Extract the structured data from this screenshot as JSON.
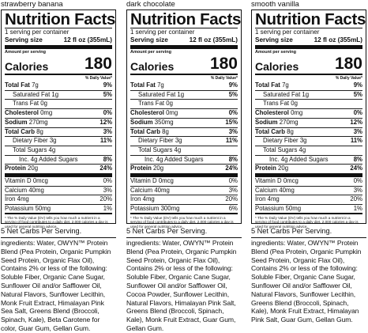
{
  "panels": [
    {
      "flavor": "strawberry banana",
      "title": "Nutrition Facts",
      "servings_per_container": "1 serving per container",
      "serving_size_label": "Serving size",
      "serving_size_value": "12 fl oz (355mL)",
      "amount_per_serving": "Amount per serving",
      "calories_label": "Calories",
      "calories_value": "180",
      "dv_header": "% Daily Value*",
      "rows": [
        {
          "label": "Total Fat",
          "amount": "7g",
          "pct": "9%"
        },
        {
          "label": "Saturated Fat",
          "amount": "1g",
          "pct": "5%"
        },
        {
          "label": "Trans Fat",
          "amount": "0g",
          "pct": ""
        },
        {
          "label": "Cholesterol",
          "amount": "0mg",
          "pct": "0%"
        },
        {
          "label": "Sodium",
          "amount": "270mg",
          "pct": "12%"
        },
        {
          "label": "Total Carb",
          "amount": "8g",
          "pct": "3%"
        },
        {
          "label": "Dietary Fiber",
          "amount": "3g",
          "pct": "11%"
        },
        {
          "label": "Total Sugars",
          "amount": "4g",
          "pct": ""
        },
        {
          "label": "Inc. 4g Added Sugars",
          "amount": "",
          "pct": "8%"
        },
        {
          "label": "Protein",
          "amount": "20g",
          "pct": "24%"
        }
      ],
      "vitamins": [
        {
          "label": "Vitamin D 0mcg",
          "pct": "0%"
        },
        {
          "label": "Calcium 40mg",
          "pct": "3%"
        },
        {
          "label": "Iron 4mg",
          "pct": "20%"
        },
        {
          "label": "Potassium 50mg",
          "pct": "1%"
        }
      ],
      "footnote": "* The % Daily Value (DV) tells you how much a nutrient in a serving of food contributes to a daily diet. 2,000 calories a day is used for general nutrition advice.",
      "net_carbs": "5 Net Carbs Per Serving.",
      "ingredients": "ingredients: Water, OWYN™ Protein Blend (Pea Protein, Organic Pumpkin Seed Protein, Organic Flax Oil), Contains 2% or less of the following: Soluble Fiber, Organic Cane Sugar, Sunflower Oil and/or Safflower Oil, Natural Flavors, Sunflower Lecithin, Monk Fruit Extract, Himalayan Pink Sea Salt, Greens Blend (Broccoli, Spinach, Kale), Beta Carotene for color, Guar Gum, Gellan Gum."
    },
    {
      "flavor": "dark chocolate",
      "title": "Nutrition Facts",
      "servings_per_container": "1 serving per container",
      "serving_size_label": "Serving size",
      "serving_size_value": "12 fl oz (355mL)",
      "amount_per_serving": "Amount per serving",
      "calories_label": "Calories",
      "calories_value": "180",
      "dv_header": "% Daily Value*",
      "rows": [
        {
          "label": "Total Fat",
          "amount": "7g",
          "pct": "9%"
        },
        {
          "label": "Saturated Fat",
          "amount": "1g",
          "pct": "5%"
        },
        {
          "label": "Trans Fat",
          "amount": "0g",
          "pct": ""
        },
        {
          "label": "Cholesterol",
          "amount": "0mg",
          "pct": "0%"
        },
        {
          "label": "Sodium",
          "amount": "350mg",
          "pct": "15%"
        },
        {
          "label": "Total Carb",
          "amount": "8g",
          "pct": "3%"
        },
        {
          "label": "Dietary Fiber",
          "amount": "3g",
          "pct": "11%"
        },
        {
          "label": "Total Sugars",
          "amount": "4g",
          "pct": ""
        },
        {
          "label": "Inc. 4g Added Sugars",
          "amount": "",
          "pct": "8%"
        },
        {
          "label": "Protein",
          "amount": "20g",
          "pct": "24%"
        }
      ],
      "vitamins": [
        {
          "label": "Vitamin D 0mcg",
          "pct": "0%"
        },
        {
          "label": "Calcium 40mg",
          "pct": "3%"
        },
        {
          "label": "Iron 4mg",
          "pct": "20%"
        },
        {
          "label": "Potassium 300mg",
          "pct": "6%"
        }
      ],
      "footnote": "* The % Daily Value (DV) tells you how much a nutrient in a serving of food contributes to a daily diet. 2,000 calories a day is used for general nutrition advice.",
      "net_carbs": "5 Net Carbs Per Serving.",
      "ingredients": "ingredients: Water, OWYN™ Protein Blend (Pea Protein, Organic Pumpkin Seed Protein, Organic Flax Oil), Contains 2% or less of the following: Soluble Fiber, Organic Cane Sugar, Sunflower Oil and/or Safflower Oil, Cocoa Powder, Sunflower Lecithin, Natural Flavors, Himalayan Pink Salt, Greens Blend (Broccoli, Spinach, Kale), Monk Fruit Extract, Guar Gum, Gellan Gum."
    },
    {
      "flavor": "smooth vanilla",
      "title": "Nutrition Facts",
      "servings_per_container": "1 serving per container",
      "serving_size_label": "Serving size",
      "serving_size_value": "12 fl oz (355mL)",
      "amount_per_serving": "Amount per serving",
      "calories_label": "Calories",
      "calories_value": "180",
      "dv_header": "% Daily Value*",
      "rows": [
        {
          "label": "Total Fat",
          "amount": "7g",
          "pct": "9%"
        },
        {
          "label": "Saturated Fat",
          "amount": "1g",
          "pct": "5%"
        },
        {
          "label": "Trans Fat",
          "amount": "0g",
          "pct": ""
        },
        {
          "label": "Cholesterol",
          "amount": "0mg",
          "pct": "0%"
        },
        {
          "label": "Sodium",
          "amount": "270mg",
          "pct": "12%"
        },
        {
          "label": "Total Carb",
          "amount": "8g",
          "pct": "3%"
        },
        {
          "label": "Dietary Fiber",
          "amount": "3g",
          "pct": "11%"
        },
        {
          "label": "Total Sugars",
          "amount": "4g",
          "pct": ""
        },
        {
          "label": "Inc. 4g Added Sugars",
          "amount": "",
          "pct": "8%"
        },
        {
          "label": "Protein",
          "amount": "20g",
          "pct": "24%"
        }
      ],
      "vitamins": [
        {
          "label": "Vitamin D 0mcg",
          "pct": "0%"
        },
        {
          "label": "Calcium 40mg",
          "pct": "3%"
        },
        {
          "label": "Iron 4mg",
          "pct": "20%"
        },
        {
          "label": "Potassium 50mg",
          "pct": "1%"
        }
      ],
      "footnote": "* The % Daily Value (DV) tells you how much a nutrient in a serving of food contributes to a daily diet. 2,000 calories a day is used for general nutrition advice.",
      "net_carbs": "5 Net Carbs Per Serving.",
      "ingredients": "ingredients: Water, OWYN™ Protein Blend (Pea Protein, Organic Pumpkin Seed Protein, Organic Flax Oil), Contains 2% or less of the following: Soluble Fiber, Organic Cane Sugar, Sunflower Oil and/or Safflower Oil, Natural Flavors, Sunflower Lecithin, Greens Blend (Broccoli, Spinach, Kale), Monk Fruit Extract, Himalayan Pink Salt, Guar Gum, Gellan Gum."
    }
  ]
}
